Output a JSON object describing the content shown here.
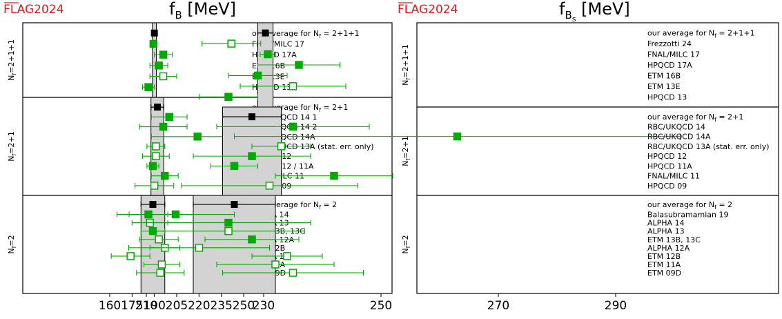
{
  "chart_data": [
    {
      "type": "scatter",
      "brand": "FLAG2024",
      "title_main": "f",
      "title_sub": "B",
      "title_unit": " [MeV]",
      "xlim": [
        157,
        265
      ],
      "xticks": [
        160,
        175,
        190,
        205,
        220,
        235,
        250
      ],
      "colors": {
        "band": "#d3d3d3",
        "average": "#000000",
        "result": "#00aa00",
        "brand": "#e3191c"
      },
      "groups": [
        {
          "label_base": "N",
          "label_sub": "f",
          "label_rest": "=2+1+1",
          "average": {
            "label": "our average for N",
            "label_sub": "f",
            "label_rest": " = 2+1+1",
            "value": 190.0,
            "err": [
              1.3,
              1.3
            ]
          },
          "results": [
            {
              "label": "FNAL/MILC 17",
              "value": 189.4,
              "err": [
                1.4,
                1.4
              ],
              "filled": true
            },
            {
              "label": "HPQCD 17A",
              "value": 196.0,
              "err": [
                6.0,
                6.0
              ],
              "filled": true
            },
            {
              "label": "ETM 16B",
              "value": 193.0,
              "err": [
                6.0,
                6.0
              ],
              "filled": true
            },
            {
              "label": "ETM 13E",
              "value": 196.0,
              "err": [
                9.0,
                9.0
              ],
              "filled": false
            },
            {
              "label": "HPQCD 13",
              "value": 186.0,
              "err": [
                4.0,
                4.0
              ],
              "filled": true
            }
          ]
        },
        {
          "label_base": "N",
          "label_sub": "f",
          "label_rest": "=2+1",
          "average": {
            "label": "our average for N",
            "label_sub": "f",
            "label_rest": " = 2+1",
            "value": 192.0,
            "err": [
              4.3,
              4.3
            ]
          },
          "results": [
            {
              "label": "RBC/UKQCD 14 1",
              "value": 200.0,
              "err": [
                12.0,
                12.0
              ],
              "filled": true
            },
            {
              "label": "RBC/UKQCD 14 2",
              "value": 196.0,
              "err": [
                16.0,
                16.0
              ],
              "filled": true
            },
            {
              "label": "RBC/UKQCD 14A",
              "value": 219.0,
              "err": [
                31.0,
                31.0
              ],
              "filled": true
            },
            {
              "label": "RBC/UKQCD 13A (stat. err. only)",
              "value": 191.0,
              "err": [
                6.0,
                6.0
              ],
              "filled": false
            },
            {
              "label": "HPQCD 12",
              "value": 191.0,
              "err": [
                9.0,
                9.0
              ],
              "filled": false
            },
            {
              "label": "HPQCD 12 / 11A",
              "value": 189.0,
              "err": [
                4.0,
                4.0
              ],
              "filled": true
            },
            {
              "label": "FNAL/MILC 11",
              "value": 197.0,
              "err": [
                9.0,
                9.0
              ],
              "filled": true
            },
            {
              "label": "HPQCD 09",
              "value": 190.0,
              "err": [
                13.0,
                13.0
              ],
              "filled": false
            }
          ]
        },
        {
          "label_base": "N",
          "label_sub": "f",
          "label_rest": "=2",
          "average": {
            "label": "our average for N",
            "label_sub": "f",
            "label_rest": " = 2",
            "value": 189.0,
            "err": [
              8.0,
              8.0
            ]
          },
          "results": [
            {
              "label": "ALPHA 14",
              "value": 186.0,
              "err": [
                13.0,
                13.0
              ],
              "filled": true
            },
            {
              "label": "ALPHA 13",
              "value": 187.0,
              "err": [
                12.0,
                12.0
              ],
              "filled": false
            },
            {
              "label": "ETM 13B, 13C",
              "value": 189.0,
              "err": [
                8.0,
                8.0
              ],
              "filled": true
            },
            {
              "label": "ALPHA 12A",
              "value": 193.0,
              "err": [
                13.0,
                13.0
              ],
              "filled": false
            },
            {
              "label": "ETM 12B",
              "value": 197.0,
              "err": [
                10.0,
                10.0
              ],
              "filled": false
            },
            {
              "label": "ALPHA 11",
              "value": 174.0,
              "err": [
                13.0,
                13.0
              ],
              "filled": false
            },
            {
              "label": "ETM 11A",
              "value": 195.0,
              "err": [
                12.0,
                12.0
              ],
              "filled": false
            },
            {
              "label": "ETM 09D",
              "value": 194.0,
              "err": [
                16.0,
                16.0
              ],
              "filled": false
            }
          ]
        }
      ]
    },
    {
      "type": "scatter",
      "brand": "FLAG2024",
      "title_main": "f",
      "title_sub": "B",
      "title_subsub": "s",
      "title_unit": " [MeV]",
      "xlim": [
        197,
        327
      ],
      "xticks": [
        210,
        230,
        250,
        270,
        290
      ],
      "colors": {
        "band": "#d3d3d3",
        "average": "#000000",
        "result": "#00aa00",
        "brand": "#e3191c"
      },
      "groups": [
        {
          "label_base": "N",
          "label_sub": "f",
          "label_rest": "=2+1+1",
          "average": {
            "label": "our average for N",
            "label_sub": "f",
            "label_rest": " = 2+1+1",
            "value": 230.3,
            "err": [
              1.3,
              1.3
            ]
          },
          "results": [
            {
              "label": "Frezzotti 24",
              "value": 224.5,
              "err": [
                5.0,
                5.0
              ],
              "filled": false
            },
            {
              "label": "FNAL/MILC 17",
              "value": 230.7,
              "err": [
                1.3,
                1.3
              ],
              "filled": true
            },
            {
              "label": "HPQCD 17A",
              "value": 236.0,
              "err": [
                7.0,
                7.0
              ],
              "filled": true
            },
            {
              "label": "ETM 16B",
              "value": 229.0,
              "err": [
                5.0,
                5.0
              ],
              "filled": true
            },
            {
              "label": "ETM 13E",
              "value": 235.0,
              "err": [
                9.0,
                9.0
              ],
              "filled": false
            },
            {
              "label": "HPQCD 13",
              "value": 224.0,
              "err": [
                5.0,
                5.0
              ],
              "filled": true
            }
          ]
        },
        {
          "label_base": "N",
          "label_sub": "f",
          "label_rest": "=2+1",
          "average": {
            "label": "our average for N",
            "label_sub": "f",
            "label_rest": " = 2+1",
            "value": 228.0,
            "err": [
              5.0,
              5.0
            ]
          },
          "results": [
            {
              "label": "RBC/UKQCD 14",
              "value": 235.0,
              "err": [
                13.0,
                13.0
              ],
              "filled": true
            },
            {
              "label": "RBC/UKQCD 14A",
              "value": 263.0,
              "err": [
                38.0,
                38.0
              ],
              "filled": true
            },
            {
              "label": "RBC/UKQCD 13A (stat. err. only)",
              "value": 233.0,
              "err": [
                5.0,
                5.0
              ],
              "filled": false
            },
            {
              "label": "HPQCD 12",
              "value": 228.0,
              "err": [
                10.0,
                10.0
              ],
              "filled": true
            },
            {
              "label": "HPQCD 11A",
              "value": 225.0,
              "err": [
                4.0,
                4.0
              ],
              "filled": true
            },
            {
              "label": "FNAL/MILC 11",
              "value": 242.0,
              "err": [
                10.0,
                10.0
              ],
              "filled": true
            },
            {
              "label": "HPQCD 09",
              "value": 231.0,
              "err": [
                15.0,
                15.0
              ],
              "filled": false
            }
          ]
        },
        {
          "label_base": "N",
          "label_sub": "f",
          "label_rest": "=2",
          "average": {
            "label": "our average for N",
            "label_sub": "f",
            "label_rest": " = 2",
            "value": 225.0,
            "err": [
              7.0,
              7.0
            ]
          },
          "results": [
            {
              "label": "Balasubramamian 19",
              "value": 215.0,
              "err": [
                10.0,
                10.0
              ],
              "filled": true
            },
            {
              "label": "ALPHA 14",
              "value": 224.0,
              "err": [
                14.0,
                14.0
              ],
              "filled": true
            },
            {
              "label": "ALPHA 13",
              "value": 224.0,
              "err": [
                13.0,
                13.0
              ],
              "filled": false
            },
            {
              "label": "ETM 13B, 13C",
              "value": 228.0,
              "err": [
                8.0,
                8.0
              ],
              "filled": true
            },
            {
              "label": "ALPHA 12A",
              "value": 219.0,
              "err": [
                12.0,
                12.0
              ],
              "filled": false
            },
            {
              "label": "ETM 12B",
              "value": 234.0,
              "err": [
                6.0,
                6.0
              ],
              "filled": false
            },
            {
              "label": "ETM 11A",
              "value": 232.0,
              "err": [
                10.0,
                10.0
              ],
              "filled": false
            },
            {
              "label": "ETM 09D",
              "value": 235.0,
              "err": [
                12.0,
                12.0
              ],
              "filled": false
            }
          ]
        }
      ]
    }
  ]
}
